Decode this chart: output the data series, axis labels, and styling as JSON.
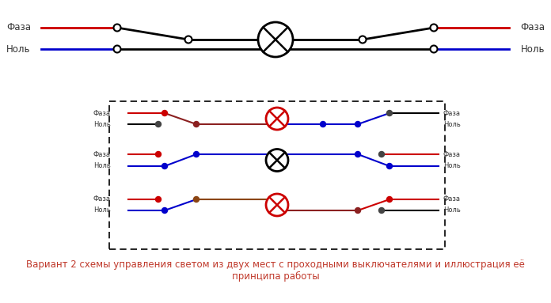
{
  "bg_color": "#ffffff",
  "title_text": "Вариант 2 схемы управления светом из двух мест с проходными выключателями и иллюстрация её\nпринципа работы",
  "title_color": "#c0392b",
  "title_fontsize": 8.5,
  "faza_label": "Фаза",
  "nol_label": "Ноль",
  "label_fontsize": 8.5,
  "inner_label_fontsize": 6.0,
  "label_color": "#333333",
  "red_line": "#cc0000",
  "dark_red": "#8b0000",
  "blue_line": "#0000cc",
  "black_line": "#000000",
  "brown_line": "#8B4513",
  "lamp_black": "#000000",
  "lamp_red": "#cc0000"
}
